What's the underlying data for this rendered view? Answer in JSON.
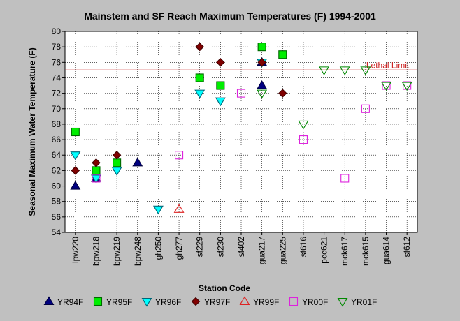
{
  "chart_data": {
    "type": "scatter",
    "title": "Mainstem and SF Reach Maximum Temperatures (F) 1994-2001",
    "xlabel": "Station Code",
    "ylabel": "Seasonal Maximum Water Temperature  (F)",
    "ylim": [
      54,
      80
    ],
    "yticks": [
      54,
      56,
      58,
      60,
      62,
      64,
      66,
      68,
      70,
      72,
      74,
      76,
      78,
      80
    ],
    "grid": true,
    "legend_position": "bottom",
    "categories": [
      "lpw220",
      "bpw218",
      "bpw219",
      "bpw248",
      "gh250",
      "gh277",
      "sf229",
      "sf230",
      "sf402",
      "gua217",
      "gua225",
      "sf616",
      "pcc621",
      "mck617",
      "mck615",
      "gua614",
      "sf612"
    ],
    "reference_line": {
      "label": "Lethal Limit",
      "value": 75,
      "color": "#cc2222"
    },
    "series": [
      {
        "name": "YR94F",
        "marker": "triangle-up",
        "fill": "#000080",
        "stroke": "#000040",
        "points": [
          [
            "lpw220",
            60
          ],
          [
            "bpw218",
            61
          ],
          [
            "bpw248",
            63
          ],
          [
            "gua217",
            73
          ],
          [
            "gua217",
            76
          ]
        ]
      },
      {
        "name": "YR95F",
        "marker": "square",
        "fill": "#00ee00",
        "stroke": "#006600",
        "points": [
          [
            "lpw220",
            67
          ],
          [
            "bpw218",
            62
          ],
          [
            "bpw219",
            63
          ],
          [
            "sf229",
            74
          ],
          [
            "sf230",
            73
          ],
          [
            "gua217",
            78
          ],
          [
            "gua225",
            77
          ]
        ]
      },
      {
        "name": "YR96F",
        "marker": "triangle-down",
        "fill": "#00ffff",
        "stroke": "#006677",
        "points": [
          [
            "lpw220",
            64
          ],
          [
            "bpw218",
            61
          ],
          [
            "bpw219",
            62
          ],
          [
            "gh250",
            57
          ],
          [
            "sf229",
            72
          ],
          [
            "sf230",
            71
          ],
          [
            "gua217",
            76
          ]
        ]
      },
      {
        "name": "YR97F",
        "marker": "diamond",
        "fill": "#800000",
        "stroke": "#400000",
        "points": [
          [
            "lpw220",
            62
          ],
          [
            "bpw218",
            63
          ],
          [
            "bpw219",
            64
          ],
          [
            "sf229",
            78
          ],
          [
            "sf230",
            76
          ],
          [
            "gua217",
            76
          ],
          [
            "gua225",
            72
          ]
        ]
      },
      {
        "name": "YR99F",
        "marker": "triangle-up-open",
        "fill": "none",
        "stroke": "#dd2222",
        "points": [
          [
            "gh277",
            57
          ]
        ]
      },
      {
        "name": "YR00F",
        "marker": "square-open",
        "fill": "none",
        "stroke": "#dd22dd",
        "points": [
          [
            "bpw218",
            61
          ],
          [
            "gh277",
            64
          ],
          [
            "sf402",
            72
          ],
          [
            "sf616",
            66
          ],
          [
            "mck617",
            61
          ],
          [
            "mck615",
            70
          ],
          [
            "gua614",
            73
          ],
          [
            "sf612",
            73
          ]
        ]
      },
      {
        "name": "YR01F",
        "marker": "triangle-down-open",
        "fill": "none",
        "stroke": "#008800",
        "points": [
          [
            "gua217",
            72
          ],
          [
            "sf616",
            68
          ],
          [
            "pcc621",
            75
          ],
          [
            "mck617",
            75
          ],
          [
            "mck615",
            75
          ],
          [
            "gua614",
            73
          ],
          [
            "sf612",
            73
          ]
        ]
      }
    ]
  }
}
